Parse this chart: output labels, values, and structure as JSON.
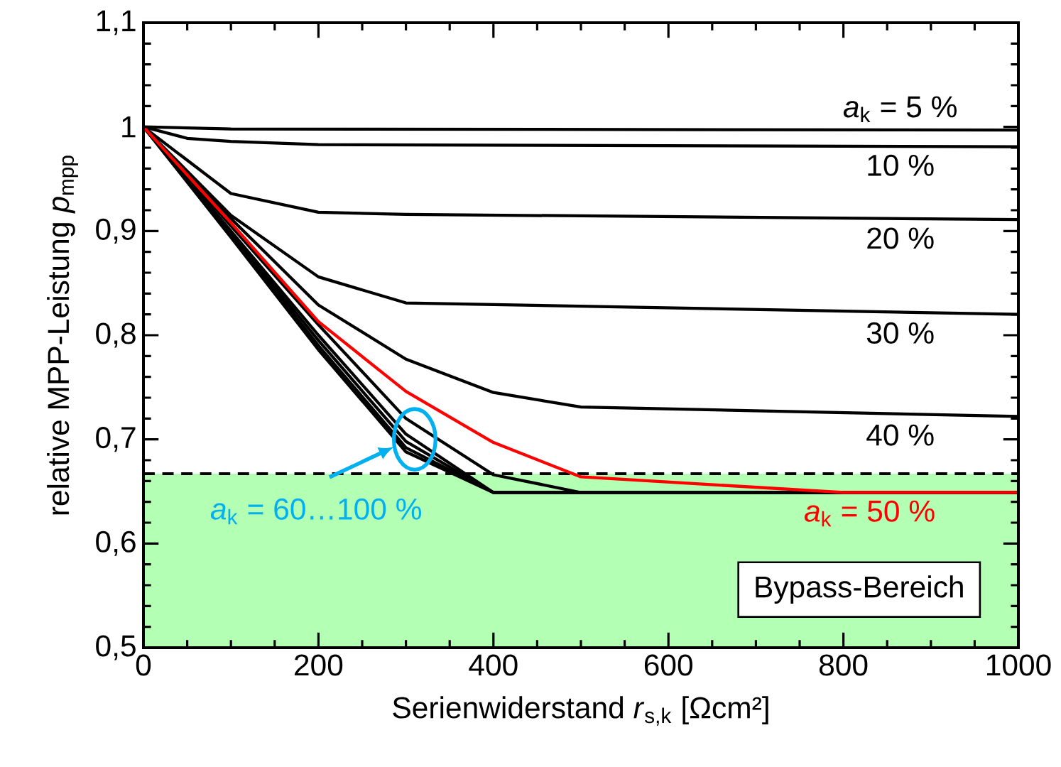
{
  "chart_data": {
    "type": "line",
    "xlabel": "Serienwiderstand *r*$_{s,k}$ [Ωcm²]",
    "ylabel": "relative MPP-Leistung *p*$_{mpp}$",
    "xlim": [
      0,
      1000
    ],
    "ylim": [
      0.5,
      1.1
    ],
    "xticks": [
      0,
      200,
      400,
      600,
      800,
      1000
    ],
    "yticks": [
      {
        "value": 0.5,
        "label": "0,5"
      },
      {
        "value": 0.6,
        "label": "0,6"
      },
      {
        "value": 0.7,
        "label": "0,7"
      },
      {
        "value": 0.8,
        "label": "0,8"
      },
      {
        "value": 0.9,
        "label": "0,9"
      },
      {
        "value": 1.0,
        "label": "1"
      },
      {
        "value": 1.1,
        "label": "1,1"
      }
    ],
    "grid": false,
    "legend": "right",
    "marker": "none",
    "line_style": "solid",
    "series": [
      {
        "name": "*a*$_{k}$ = 5 %",
        "color": "#000000",
        "x": [
          0,
          100,
          1000
        ],
        "values": [
          1.0,
          0.998,
          0.997
        ]
      },
      {
        "name": "10 %",
        "color": "#000000",
        "x": [
          0,
          50,
          100,
          200,
          1000
        ],
        "values": [
          1.0,
          0.989,
          0.986,
          0.983,
          0.981
        ]
      },
      {
        "name": "20 %",
        "color": "#000000",
        "x": [
          0,
          100,
          200,
          300,
          1000
        ],
        "values": [
          1.0,
          0.936,
          0.918,
          0.916,
          0.911
        ]
      },
      {
        "name": "30 %",
        "color": "#000000",
        "x": [
          0,
          100,
          200,
          300,
          1000
        ],
        "values": [
          1.0,
          0.915,
          0.856,
          0.831,
          0.82
        ]
      },
      {
        "name": "40 %",
        "color": "#000000",
        "x": [
          0,
          100,
          200,
          300,
          400,
          500,
          1000
        ],
        "values": [
          1.0,
          0.912,
          0.829,
          0.777,
          0.745,
          0.731,
          0.722
        ]
      },
      {
        "color": "#000000",
        "x": [
          0,
          100,
          200,
          300,
          400,
          500,
          1000
        ],
        "values": [
          1.0,
          0.905,
          0.81,
          0.72,
          0.666,
          0.649,
          0.649
        ]
      },
      {
        "color": "#000000",
        "x": [
          0,
          100,
          200,
          300,
          400,
          1000
        ],
        "values": [
          1.0,
          0.9,
          0.8,
          0.705,
          0.649,
          0.649
        ]
      },
      {
        "color": "#000000",
        "x": [
          0,
          100,
          200,
          300,
          400,
          1000
        ],
        "values": [
          1.0,
          0.898,
          0.795,
          0.698,
          0.649,
          0.649
        ]
      },
      {
        "color": "#000000",
        "x": [
          0,
          100,
          200,
          300,
          400,
          1000
        ],
        "values": [
          1.0,
          0.896,
          0.79,
          0.692,
          0.649,
          0.649
        ]
      },
      {
        "color": "#000000",
        "x": [
          0,
          100,
          200,
          300,
          400,
          1000
        ],
        "values": [
          1.0,
          0.894,
          0.786,
          0.688,
          0.649,
          0.649
        ]
      },
      {
        "name": "*a*$_{k}$ = 50 %",
        "color": "#ff0000",
        "x": [
          0,
          100,
          200,
          300,
          400,
          500,
          800,
          1000
        ],
        "values": [
          1.0,
          0.908,
          0.813,
          0.746,
          0.697,
          0.664,
          0.649,
          0.649
        ]
      }
    ],
    "bands": [
      {
        "axis": "y",
        "from": 0.5,
        "to": 0.667,
        "color": "#b3ffb3"
      }
    ],
    "ref_lines": [
      {
        "axis": "y",
        "value": 0.667,
        "line_style": "dashed",
        "color": "#000000"
      }
    ],
    "annotations": [
      {
        "text": "*a*$_{k}$ = 60…100 %",
        "x": 310,
        "y": 0.7
      },
      "Bypass-Bereich"
    ]
  }
}
